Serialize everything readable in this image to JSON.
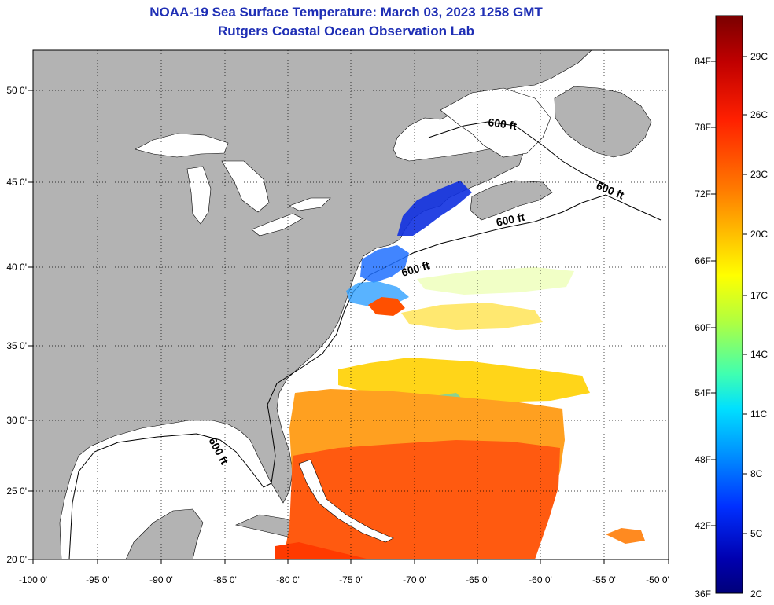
{
  "title": "NOAA-19 Sea Surface Temperature:  March 03, 2023 1258 GMT",
  "subtitle": "Rutgers Coastal Ocean Observation Lab",
  "map": {
    "lon_labels": [
      "-100 0'",
      "-95 0'",
      "-90 0'",
      "-85 0'",
      "-80 0'",
      "-75 0'",
      "-70 0'",
      "-65 0'",
      "-60 0'",
      "-55 0'",
      "-50 0'"
    ],
    "lat_labels": [
      "20 0'",
      "25 0'",
      "30 0'",
      "35 0'",
      "40 0'",
      "45 0'",
      "50 0'"
    ],
    "contour_labels": [
      "600 ft",
      "600 ft",
      "600 ft",
      "600 ft",
      "600 ft"
    ],
    "land_color": "#b3b3b3",
    "ocean_no_data_color": "#ffffff"
  },
  "colorbar": {
    "fahrenheit_labels": [
      "84F",
      "78F",
      "72F",
      "66F",
      "60F",
      "54F",
      "48F",
      "42F",
      "36F"
    ],
    "celsius_labels": [
      "29C",
      "26C",
      "23C",
      "20C",
      "17C",
      "14C",
      "11C",
      "8C",
      "5C",
      "2C"
    ],
    "colors_top_to_bottom": [
      "#7a0000",
      "#c00000",
      "#ff2000",
      "#ff7a00",
      "#ffc000",
      "#ffff00",
      "#b0ff40",
      "#40ffb0",
      "#00e0ff",
      "#0090ff",
      "#0030ff",
      "#0000b0",
      "#00007a"
    ]
  }
}
